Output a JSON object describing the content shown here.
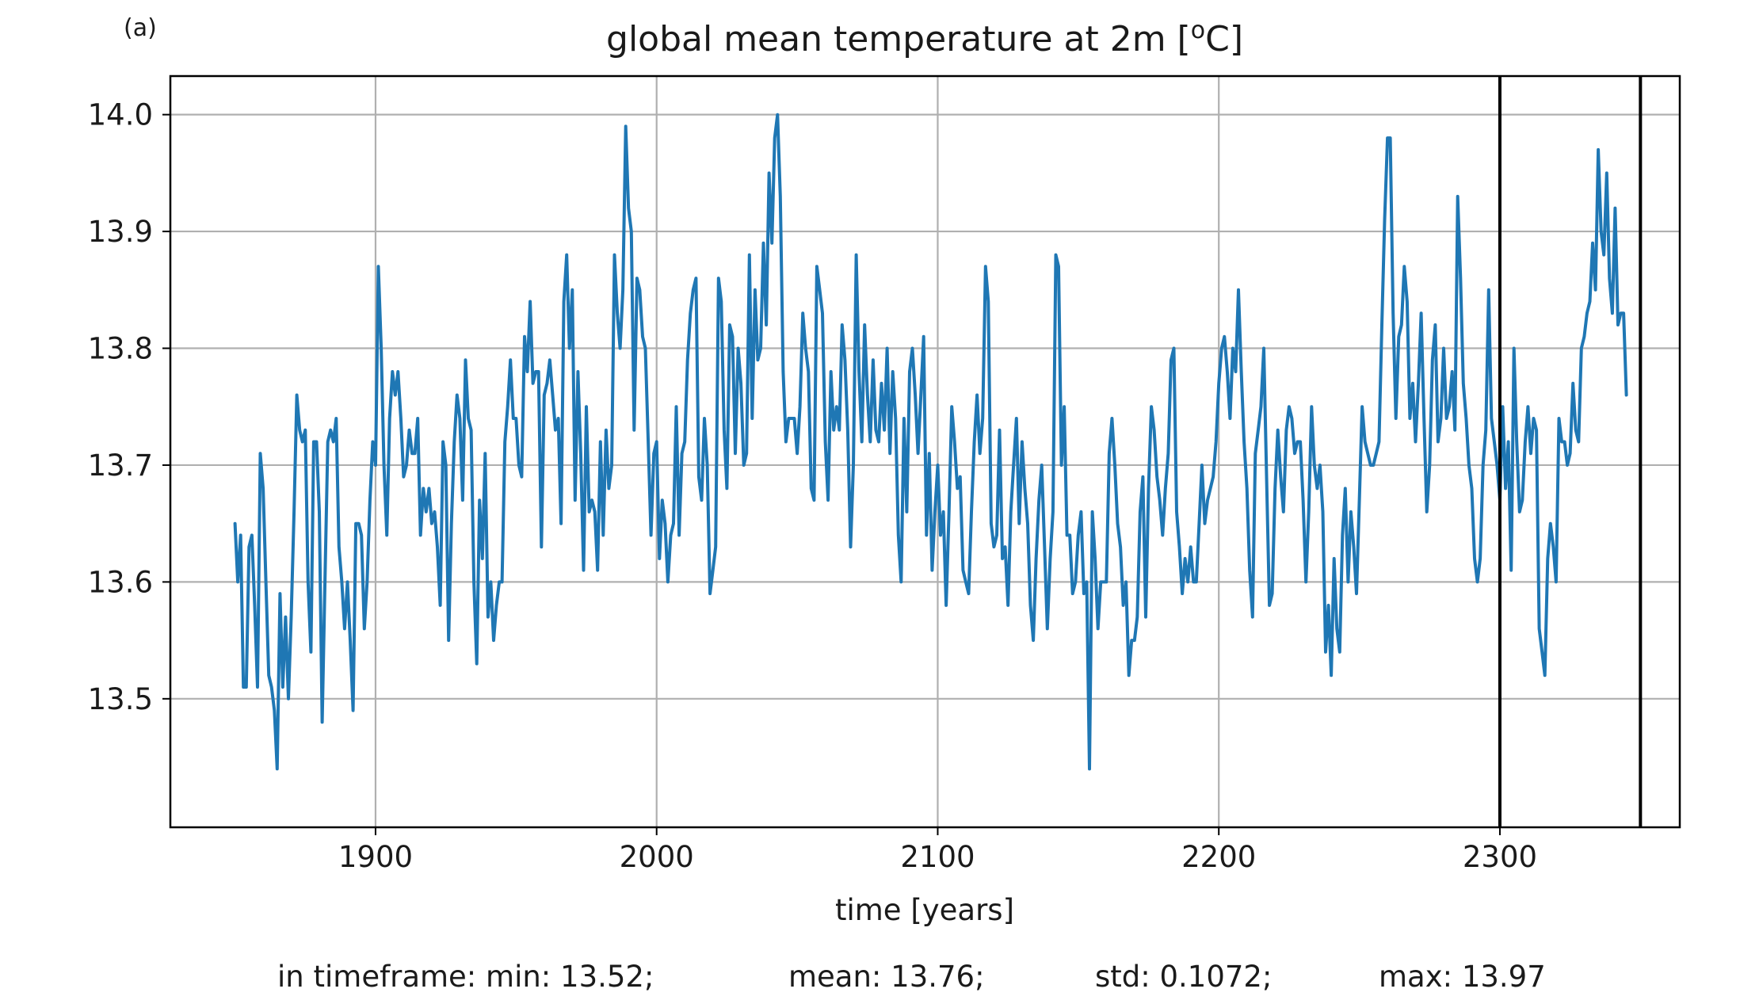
{
  "panel_label": "(a)",
  "stats_text": {
    "min": "in timeframe: min: 13.52;",
    "mean": "mean: 13.76;",
    "std": "std: 0.1072;",
    "max": "max: 13.97"
  },
  "colors": {
    "series": "#1f77b4",
    "grid": "#b0b0b0",
    "marker_lines": "#000000",
    "axes": "#000000"
  },
  "chart_data": {
    "type": "line",
    "title": "global mean temperature at 2m [°C]",
    "title_parts": {
      "before": "global mean temperature at 2m [",
      "superscript": "o",
      "after": "C]"
    },
    "xlabel": "time [years]",
    "ylabel": "",
    "xlim": [
      1827,
      2364
    ],
    "ylim": [
      13.39,
      14.033
    ],
    "xticks": [
      1900,
      2000,
      2100,
      2200,
      2300
    ],
    "xtick_labels": [
      "1900",
      "2000",
      "2100",
      "2200",
      "2300"
    ],
    "yticks": [
      13.5,
      13.6,
      13.7,
      13.8,
      13.9,
      14.0
    ],
    "ytick_labels": [
      "13.5",
      "13.6",
      "13.7",
      "13.8",
      "13.9",
      "14.0"
    ],
    "grid": true,
    "vertical_lines": [
      2300,
      2350
    ],
    "series": [
      {
        "x_start": 1850,
        "x_step": 1,
        "values": [
          13.65,
          13.6,
          13.64,
          13.51,
          13.51,
          13.63,
          13.64,
          13.58,
          13.51,
          13.71,
          13.68,
          13.6,
          13.52,
          13.51,
          13.49,
          13.44,
          13.59,
          13.51,
          13.57,
          13.5,
          13.57,
          13.66,
          13.76,
          13.73,
          13.72,
          13.73,
          13.6,
          13.54,
          13.72,
          13.72,
          13.66,
          13.48,
          13.6,
          13.72,
          13.73,
          13.72,
          13.74,
          13.63,
          13.6,
          13.56,
          13.6,
          13.55,
          13.49,
          13.65,
          13.65,
          13.64,
          13.56,
          13.6,
          13.67,
          13.72,
          13.7,
          13.87,
          13.8,
          13.7,
          13.64,
          13.74,
          13.78,
          13.76,
          13.78,
          13.74,
          13.69,
          13.7,
          13.73,
          13.71,
          13.71,
          13.74,
          13.64,
          13.68,
          13.66,
          13.68,
          13.65,
          13.66,
          13.63,
          13.58,
          13.72,
          13.7,
          13.55,
          13.65,
          13.72,
          13.76,
          13.74,
          13.67,
          13.79,
          13.74,
          13.73,
          13.6,
          13.53,
          13.67,
          13.62,
          13.71,
          13.57,
          13.6,
          13.55,
          13.58,
          13.6,
          13.6,
          13.72,
          13.75,
          13.79,
          13.74,
          13.74,
          13.7,
          13.69,
          13.81,
          13.78,
          13.84,
          13.77,
          13.78,
          13.78,
          13.63,
          13.76,
          13.77,
          13.79,
          13.76,
          13.73,
          13.74,
          13.65,
          13.84,
          13.88,
          13.8,
          13.85,
          13.67,
          13.78,
          13.71,
          13.61,
          13.75,
          13.66,
          13.67,
          13.66,
          13.61,
          13.72,
          13.64,
          13.73,
          13.68,
          13.7,
          13.88,
          13.83,
          13.8,
          13.85,
          13.99,
          13.92,
          13.9,
          13.73,
          13.86,
          13.85,
          13.81,
          13.8,
          13.72,
          13.64,
          13.71,
          13.72,
          13.62,
          13.67,
          13.65,
          13.6,
          13.64,
          13.65,
          13.75,
          13.64,
          13.71,
          13.72,
          13.79,
          13.83,
          13.85,
          13.86,
          13.69,
          13.67,
          13.74,
          13.7,
          13.59,
          13.61,
          13.63,
          13.86,
          13.84,
          13.73,
          13.68,
          13.82,
          13.81,
          13.71,
          13.8,
          13.77,
          13.7,
          13.71,
          13.88,
          13.74,
          13.85,
          13.79,
          13.8,
          13.89,
          13.82,
          13.95,
          13.89,
          13.98,
          14.0,
          13.93,
          13.78,
          13.72,
          13.74,
          13.74,
          13.74,
          13.71,
          13.75,
          13.83,
          13.8,
          13.78,
          13.68,
          13.67,
          13.87,
          13.85,
          13.83,
          13.72,
          13.67,
          13.78,
          13.73,
          13.75,
          13.73,
          13.82,
          13.79,
          13.73,
          13.63,
          13.7,
          13.88,
          13.78,
          13.72,
          13.82,
          13.76,
          13.72,
          13.79,
          13.73,
          13.72,
          13.77,
          13.73,
          13.8,
          13.71,
          13.78,
          13.74,
          13.64,
          13.6,
          13.74,
          13.66,
          13.78,
          13.8,
          13.76,
          13.71,
          13.76,
          13.81,
          13.64,
          13.71,
          13.61,
          13.66,
          13.7,
          13.64,
          13.66,
          13.58,
          13.66,
          13.75,
          13.72,
          13.68,
          13.69,
          13.61,
          13.6,
          13.59,
          13.66,
          13.72,
          13.76,
          13.71,
          13.74,
          13.87,
          13.84,
          13.65,
          13.63,
          13.64,
          13.73,
          13.62,
          13.63,
          13.58,
          13.66,
          13.7,
          13.74,
          13.65,
          13.72,
          13.68,
          13.65,
          13.58,
          13.55,
          13.62,
          13.67,
          13.7,
          13.63,
          13.56,
          13.62,
          13.66,
          13.88,
          13.87,
          13.7,
          13.75,
          13.64,
          13.64,
          13.59,
          13.6,
          13.64,
          13.66,
          13.59,
          13.6,
          13.44,
          13.66,
          13.62,
          13.56,
          13.6,
          13.6,
          13.6,
          13.71,
          13.74,
          13.7,
          13.65,
          13.63,
          13.58,
          13.6,
          13.52,
          13.55,
          13.55,
          13.57,
          13.66,
          13.69,
          13.57,
          13.68,
          13.75,
          13.73,
          13.69,
          13.67,
          13.64,
          13.68,
          13.71,
          13.79,
          13.8,
          13.66,
          13.63,
          13.59,
          13.62,
          13.6,
          13.63,
          13.6,
          13.6,
          13.65,
          13.7,
          13.65,
          13.67,
          13.68,
          13.69,
          13.72,
          13.77,
          13.8,
          13.81,
          13.78,
          13.74,
          13.8,
          13.78,
          13.85,
          13.78,
          13.72,
          13.68,
          13.61,
          13.57,
          13.71,
          13.73,
          13.75,
          13.8,
          13.69,
          13.58,
          13.59,
          13.68,
          13.73,
          13.69,
          13.66,
          13.73,
          13.75,
          13.74,
          13.71,
          13.72,
          13.72,
          13.67,
          13.6,
          13.66,
          13.75,
          13.7,
          13.68,
          13.7,
          13.66,
          13.54,
          13.58,
          13.52,
          13.62,
          13.56,
          13.54,
          13.64,
          13.68,
          13.6,
          13.66,
          13.63,
          13.59,
          13.67,
          13.75,
          13.72,
          13.71,
          13.7,
          13.7,
          13.71,
          13.72,
          13.82,
          13.91,
          13.98,
          13.98,
          13.83,
          13.74,
          13.81,
          13.82,
          13.87,
          13.84,
          13.74,
          13.77,
          13.72,
          13.77,
          13.83,
          13.74,
          13.66,
          13.7,
          13.79,
          13.82,
          13.72,
          13.74,
          13.8,
          13.74,
          13.75,
          13.78,
          13.73,
          13.93,
          13.86,
          13.77,
          13.74,
          13.7,
          13.68,
          13.62,
          13.6,
          13.62,
          13.7,
          13.73,
          13.85,
          13.74,
          13.72,
          13.7,
          13.67,
          13.75,
          13.68,
          13.72,
          13.61,
          13.8,
          13.72,
          13.66,
          13.67,
          13.72,
          13.75,
          13.71,
          13.74,
          13.73,
          13.56,
          13.54,
          13.52,
          13.62,
          13.65,
          13.63,
          13.6,
          13.74,
          13.72,
          13.72,
          13.7,
          13.71,
          13.77,
          13.73,
          13.72,
          13.8,
          13.81,
          13.83,
          13.84,
          13.89,
          13.85,
          13.97,
          13.9,
          13.88,
          13.95,
          13.86,
          13.83,
          13.92,
          13.82,
          13.83,
          13.83,
          13.76
        ]
      }
    ]
  }
}
